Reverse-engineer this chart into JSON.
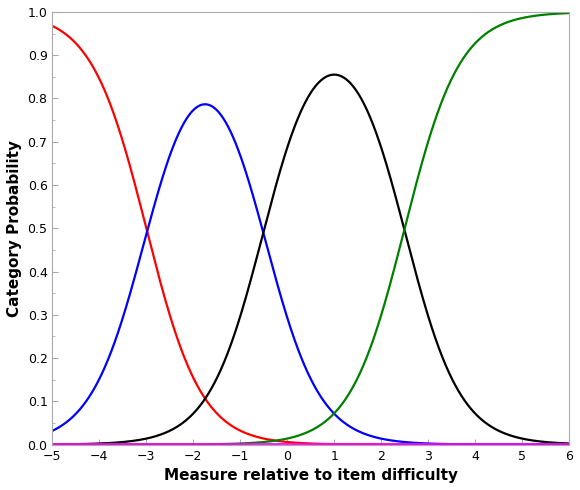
{
  "xlabel": "Measure relative to item difficulty",
  "ylabel": "Category Probability",
  "xlim": [
    -5,
    6
  ],
  "ylim": [
    0,
    1
  ],
  "xticks": [
    -5,
    -4,
    -3,
    -2,
    -1,
    0,
    1,
    2,
    3,
    4,
    5,
    6
  ],
  "yticks": [
    0.0,
    0.1,
    0.2,
    0.3,
    0.4,
    0.5,
    0.6,
    0.7,
    0.8,
    0.9,
    1.0
  ],
  "background_color": "#ffffff",
  "figsize": [
    5.8,
    4.9
  ],
  "dpi": 100,
  "discrimination": 1.7,
  "thresholds": [
    -3.0,
    -0.5,
    2.5
  ],
  "colors": [
    "red",
    "blue",
    "black",
    "green",
    "magenta"
  ],
  "linewidth": 1.6,
  "border_color": "#aaaaaa"
}
